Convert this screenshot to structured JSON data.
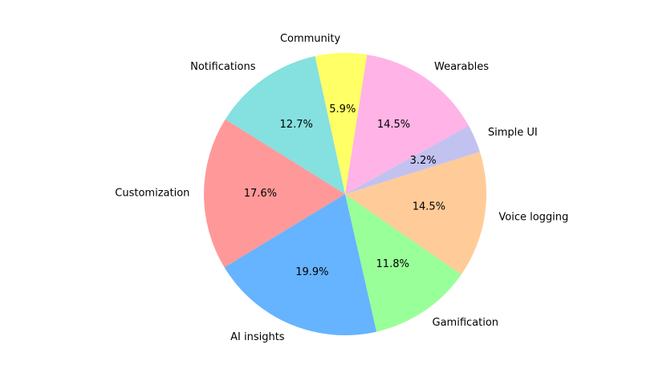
{
  "chart_data": {
    "type": "pie",
    "categories": [
      "Customization",
      "AI insights",
      "Gamification",
      "Voice logging",
      "Simple UI",
      "Wearables",
      "Community",
      "Notifications"
    ],
    "values": [
      17.6,
      19.9,
      11.8,
      14.5,
      3.2,
      14.5,
      5.9,
      12.7
    ],
    "value_labels": [
      "17.6%",
      "19.9%",
      "11.8%",
      "14.5%",
      "3.2%",
      "14.5%",
      "5.9%",
      "12.7%"
    ],
    "colors": [
      "#ff9999",
      "#66b3ff",
      "#99ff99",
      "#ffcc99",
      "#c2c2f0",
      "#ffb3e6",
      "#ffff66",
      "#85e0e0"
    ],
    "start_angle_deg": 148,
    "direction": "counterclockwise",
    "legend": "none"
  }
}
